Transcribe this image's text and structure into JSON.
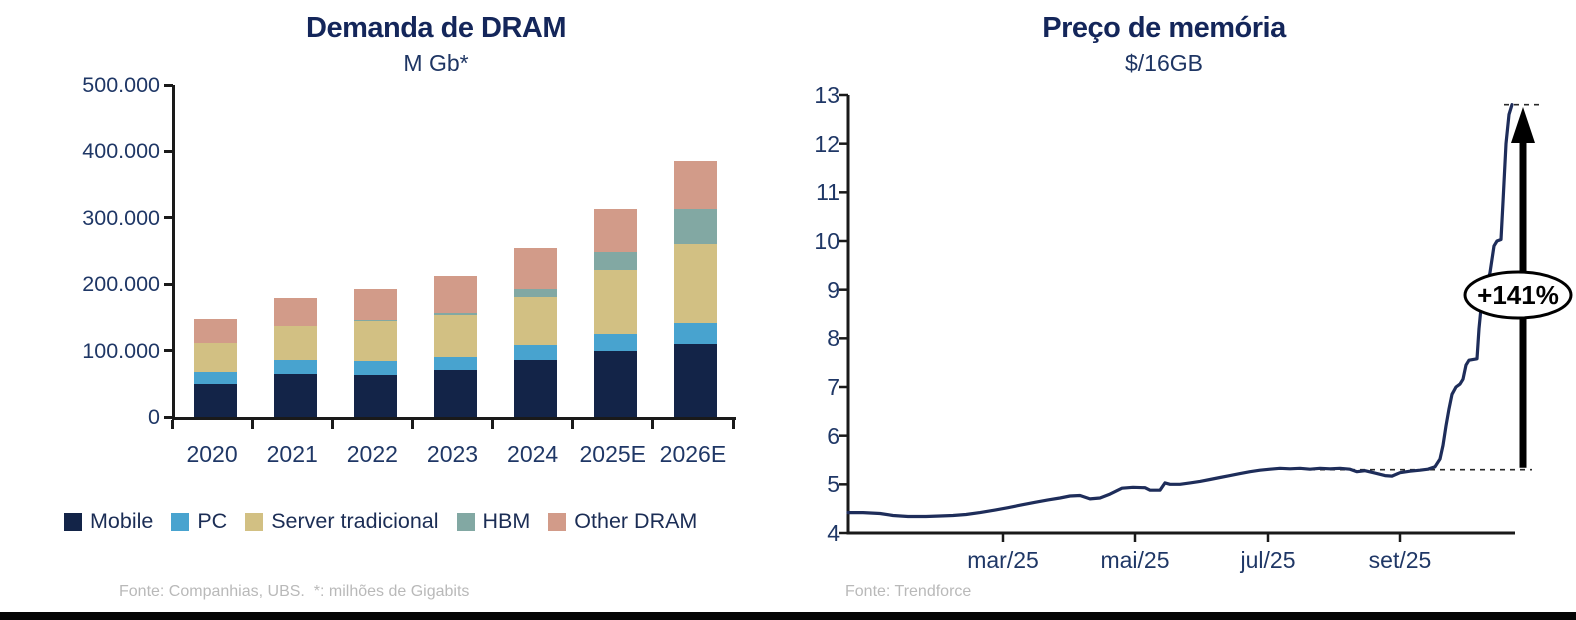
{
  "page": {
    "background": "#ffffff",
    "bottom_bar_color": "#050505"
  },
  "chart_data": [
    {
      "type": "bar",
      "stacked": true,
      "title": "Demanda de DRAM",
      "subtitle": "M Gb*",
      "categories": [
        "2020",
        "2021",
        "2022",
        "2023",
        "2024",
        "2025E",
        "2026E"
      ],
      "series": [
        {
          "name": "Mobile",
          "color": "#132448",
          "values": [
            50000,
            65000,
            63000,
            71000,
            86000,
            99000,
            110000
          ]
        },
        {
          "name": "PC",
          "color": "#48a3cf",
          "values": [
            18000,
            21000,
            21000,
            20000,
            23000,
            26000,
            32000
          ]
        },
        {
          "name": "Server tradicional",
          "color": "#d2c083",
          "values": [
            44000,
            51000,
            61000,
            62000,
            72000,
            96000,
            118000
          ]
        },
        {
          "name": "HBM",
          "color": "#82a8a3",
          "values": [
            0,
            0,
            1000,
            3000,
            12000,
            27000,
            53000
          ]
        },
        {
          "name": "Other DRAM",
          "color": "#d29b89",
          "values": [
            36000,
            42000,
            47000,
            56000,
            62000,
            65000,
            73000
          ]
        }
      ],
      "totals": [
        148000,
        179000,
        193000,
        212000,
        255000,
        313000,
        386000
      ],
      "ylim": [
        0,
        500000
      ],
      "y_tick_labels": [
        "500.000",
        "400.000",
        "300.000",
        "200.000",
        "100.000",
        "0"
      ],
      "grid": false,
      "legend_position": "bottom",
      "source": "Fonte: Companhias, UBS.  *: milhões de Gigabits"
    },
    {
      "type": "line",
      "title": "Preço de memória",
      "subtitle": "$/16GB",
      "ylim": [
        4,
        13
      ],
      "y_tick_labels": [
        "13",
        "12",
        "11",
        "10",
        "9",
        "8",
        "7",
        "6",
        "5",
        "4"
      ],
      "x_tick_labels": [
        "mar/25",
        "mai/25",
        "jul/25",
        "set/25"
      ],
      "x_tick_dx": [
        155,
        287,
        420,
        552
      ],
      "line_color": "#1e2d5a",
      "annotation": {
        "label": "+141%",
        "from_value": 5.3,
        "to_value": 12.8
      },
      "source": "Fonte: Trendforce",
      "points": [
        [
          0,
          4.42
        ],
        [
          15,
          4.42
        ],
        [
          32,
          4.4
        ],
        [
          45,
          4.36
        ],
        [
          60,
          4.34
        ],
        [
          78,
          4.34
        ],
        [
          92,
          4.35
        ],
        [
          105,
          4.36
        ],
        [
          118,
          4.38
        ],
        [
          132,
          4.42
        ],
        [
          147,
          4.47
        ],
        [
          160,
          4.52
        ],
        [
          174,
          4.58
        ],
        [
          187,
          4.63
        ],
        [
          200,
          4.68
        ],
        [
          212,
          4.72
        ],
        [
          222,
          4.76
        ],
        [
          232,
          4.77
        ],
        [
          242,
          4.7
        ],
        [
          252,
          4.72
        ],
        [
          262,
          4.8
        ],
        [
          274,
          4.92
        ],
        [
          285,
          4.94
        ],
        [
          297,
          4.93
        ],
        [
          302,
          4.88
        ],
        [
          312,
          4.88
        ],
        [
          317,
          5.03
        ],
        [
          322,
          5.0
        ],
        [
          332,
          5.0
        ],
        [
          342,
          5.03
        ],
        [
          352,
          5.06
        ],
        [
          362,
          5.1
        ],
        [
          372,
          5.14
        ],
        [
          382,
          5.18
        ],
        [
          392,
          5.22
        ],
        [
          402,
          5.26
        ],
        [
          412,
          5.29
        ],
        [
          422,
          5.31
        ],
        [
          432,
          5.33
        ],
        [
          442,
          5.32
        ],
        [
          452,
          5.33
        ],
        [
          462,
          5.31
        ],
        [
          472,
          5.33
        ],
        [
          482,
          5.32
        ],
        [
          492,
          5.33
        ],
        [
          502,
          5.31
        ],
        [
          509,
          5.26
        ],
        [
          517,
          5.28
        ],
        [
          527,
          5.23
        ],
        [
          537,
          5.18
        ],
        [
          544,
          5.17
        ],
        [
          552,
          5.24
        ],
        [
          562,
          5.27
        ],
        [
          572,
          5.29
        ],
        [
          580,
          5.31
        ],
        [
          587,
          5.36
        ],
        [
          592,
          5.52
        ],
        [
          595,
          5.8
        ],
        [
          598,
          6.2
        ],
        [
          601,
          6.55
        ],
        [
          604,
          6.85
        ],
        [
          608,
          7.0
        ],
        [
          612,
          7.06
        ],
        [
          615,
          7.16
        ],
        [
          618,
          7.45
        ],
        [
          621,
          7.55
        ],
        [
          629,
          7.58
        ],
        [
          631,
          8.2
        ],
        [
          633,
          8.62
        ],
        [
          638,
          9.02
        ],
        [
          642,
          9.35
        ],
        [
          646,
          9.9
        ],
        [
          649,
          10.0
        ],
        [
          653,
          10.03
        ],
        [
          655,
          10.8
        ],
        [
          658,
          12.0
        ],
        [
          661,
          12.6
        ],
        [
          664,
          12.8
        ]
      ]
    }
  ]
}
